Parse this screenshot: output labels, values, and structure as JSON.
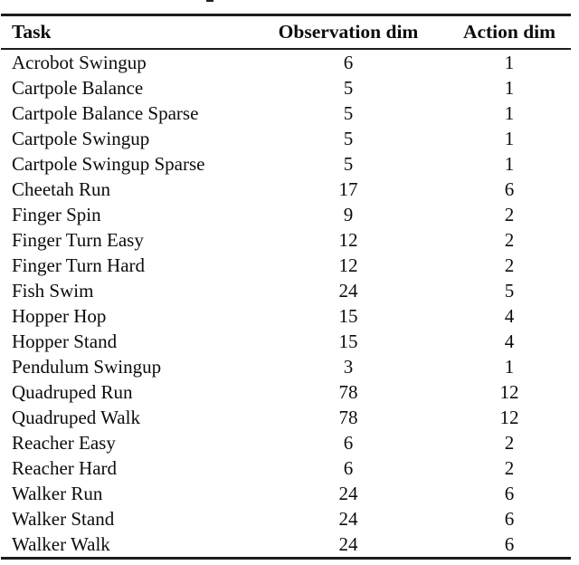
{
  "page": {
    "background": "#ffffff",
    "text_color": "#0c0c0c",
    "rule_color": "#1c1c1c"
  },
  "table": {
    "columns": [
      {
        "label": "Task",
        "align": "left"
      },
      {
        "label": "Observation dim",
        "align": "center"
      },
      {
        "label": "Action dim",
        "align": "center"
      }
    ],
    "rows": [
      {
        "task": "Acrobot Swingup",
        "observation_dim": "6",
        "action_dim": "1"
      },
      {
        "task": "Cartpole Balance",
        "observation_dim": "5",
        "action_dim": "1"
      },
      {
        "task": "Cartpole Balance Sparse",
        "observation_dim": "5",
        "action_dim": "1"
      },
      {
        "task": "Cartpole Swingup",
        "observation_dim": "5",
        "action_dim": "1"
      },
      {
        "task": "Cartpole Swingup Sparse",
        "observation_dim": "5",
        "action_dim": "1"
      },
      {
        "task": "Cheetah Run",
        "observation_dim": "17",
        "action_dim": "6"
      },
      {
        "task": "Finger Spin",
        "observation_dim": "9",
        "action_dim": "2"
      },
      {
        "task": "Finger Turn Easy",
        "observation_dim": "12",
        "action_dim": "2"
      },
      {
        "task": "Finger Turn Hard",
        "observation_dim": "12",
        "action_dim": "2"
      },
      {
        "task": "Fish Swim",
        "observation_dim": "24",
        "action_dim": "5"
      },
      {
        "task": "Hopper Hop",
        "observation_dim": "15",
        "action_dim": "4"
      },
      {
        "task": "Hopper Stand",
        "observation_dim": "15",
        "action_dim": "4"
      },
      {
        "task": "Pendulum Swingup",
        "observation_dim": "3",
        "action_dim": "1"
      },
      {
        "task": "Quadruped Run",
        "observation_dim": "78",
        "action_dim": "12"
      },
      {
        "task": "Quadruped Walk",
        "observation_dim": "78",
        "action_dim": "12"
      },
      {
        "task": "Reacher Easy",
        "observation_dim": "6",
        "action_dim": "2"
      },
      {
        "task": "Reacher Hard",
        "observation_dim": "6",
        "action_dim": "2"
      },
      {
        "task": "Walker Run",
        "observation_dim": "24",
        "action_dim": "6"
      },
      {
        "task": "Walker Stand",
        "observation_dim": "24",
        "action_dim": "6"
      },
      {
        "task": "Walker Walk",
        "observation_dim": "24",
        "action_dim": "6"
      }
    ]
  }
}
